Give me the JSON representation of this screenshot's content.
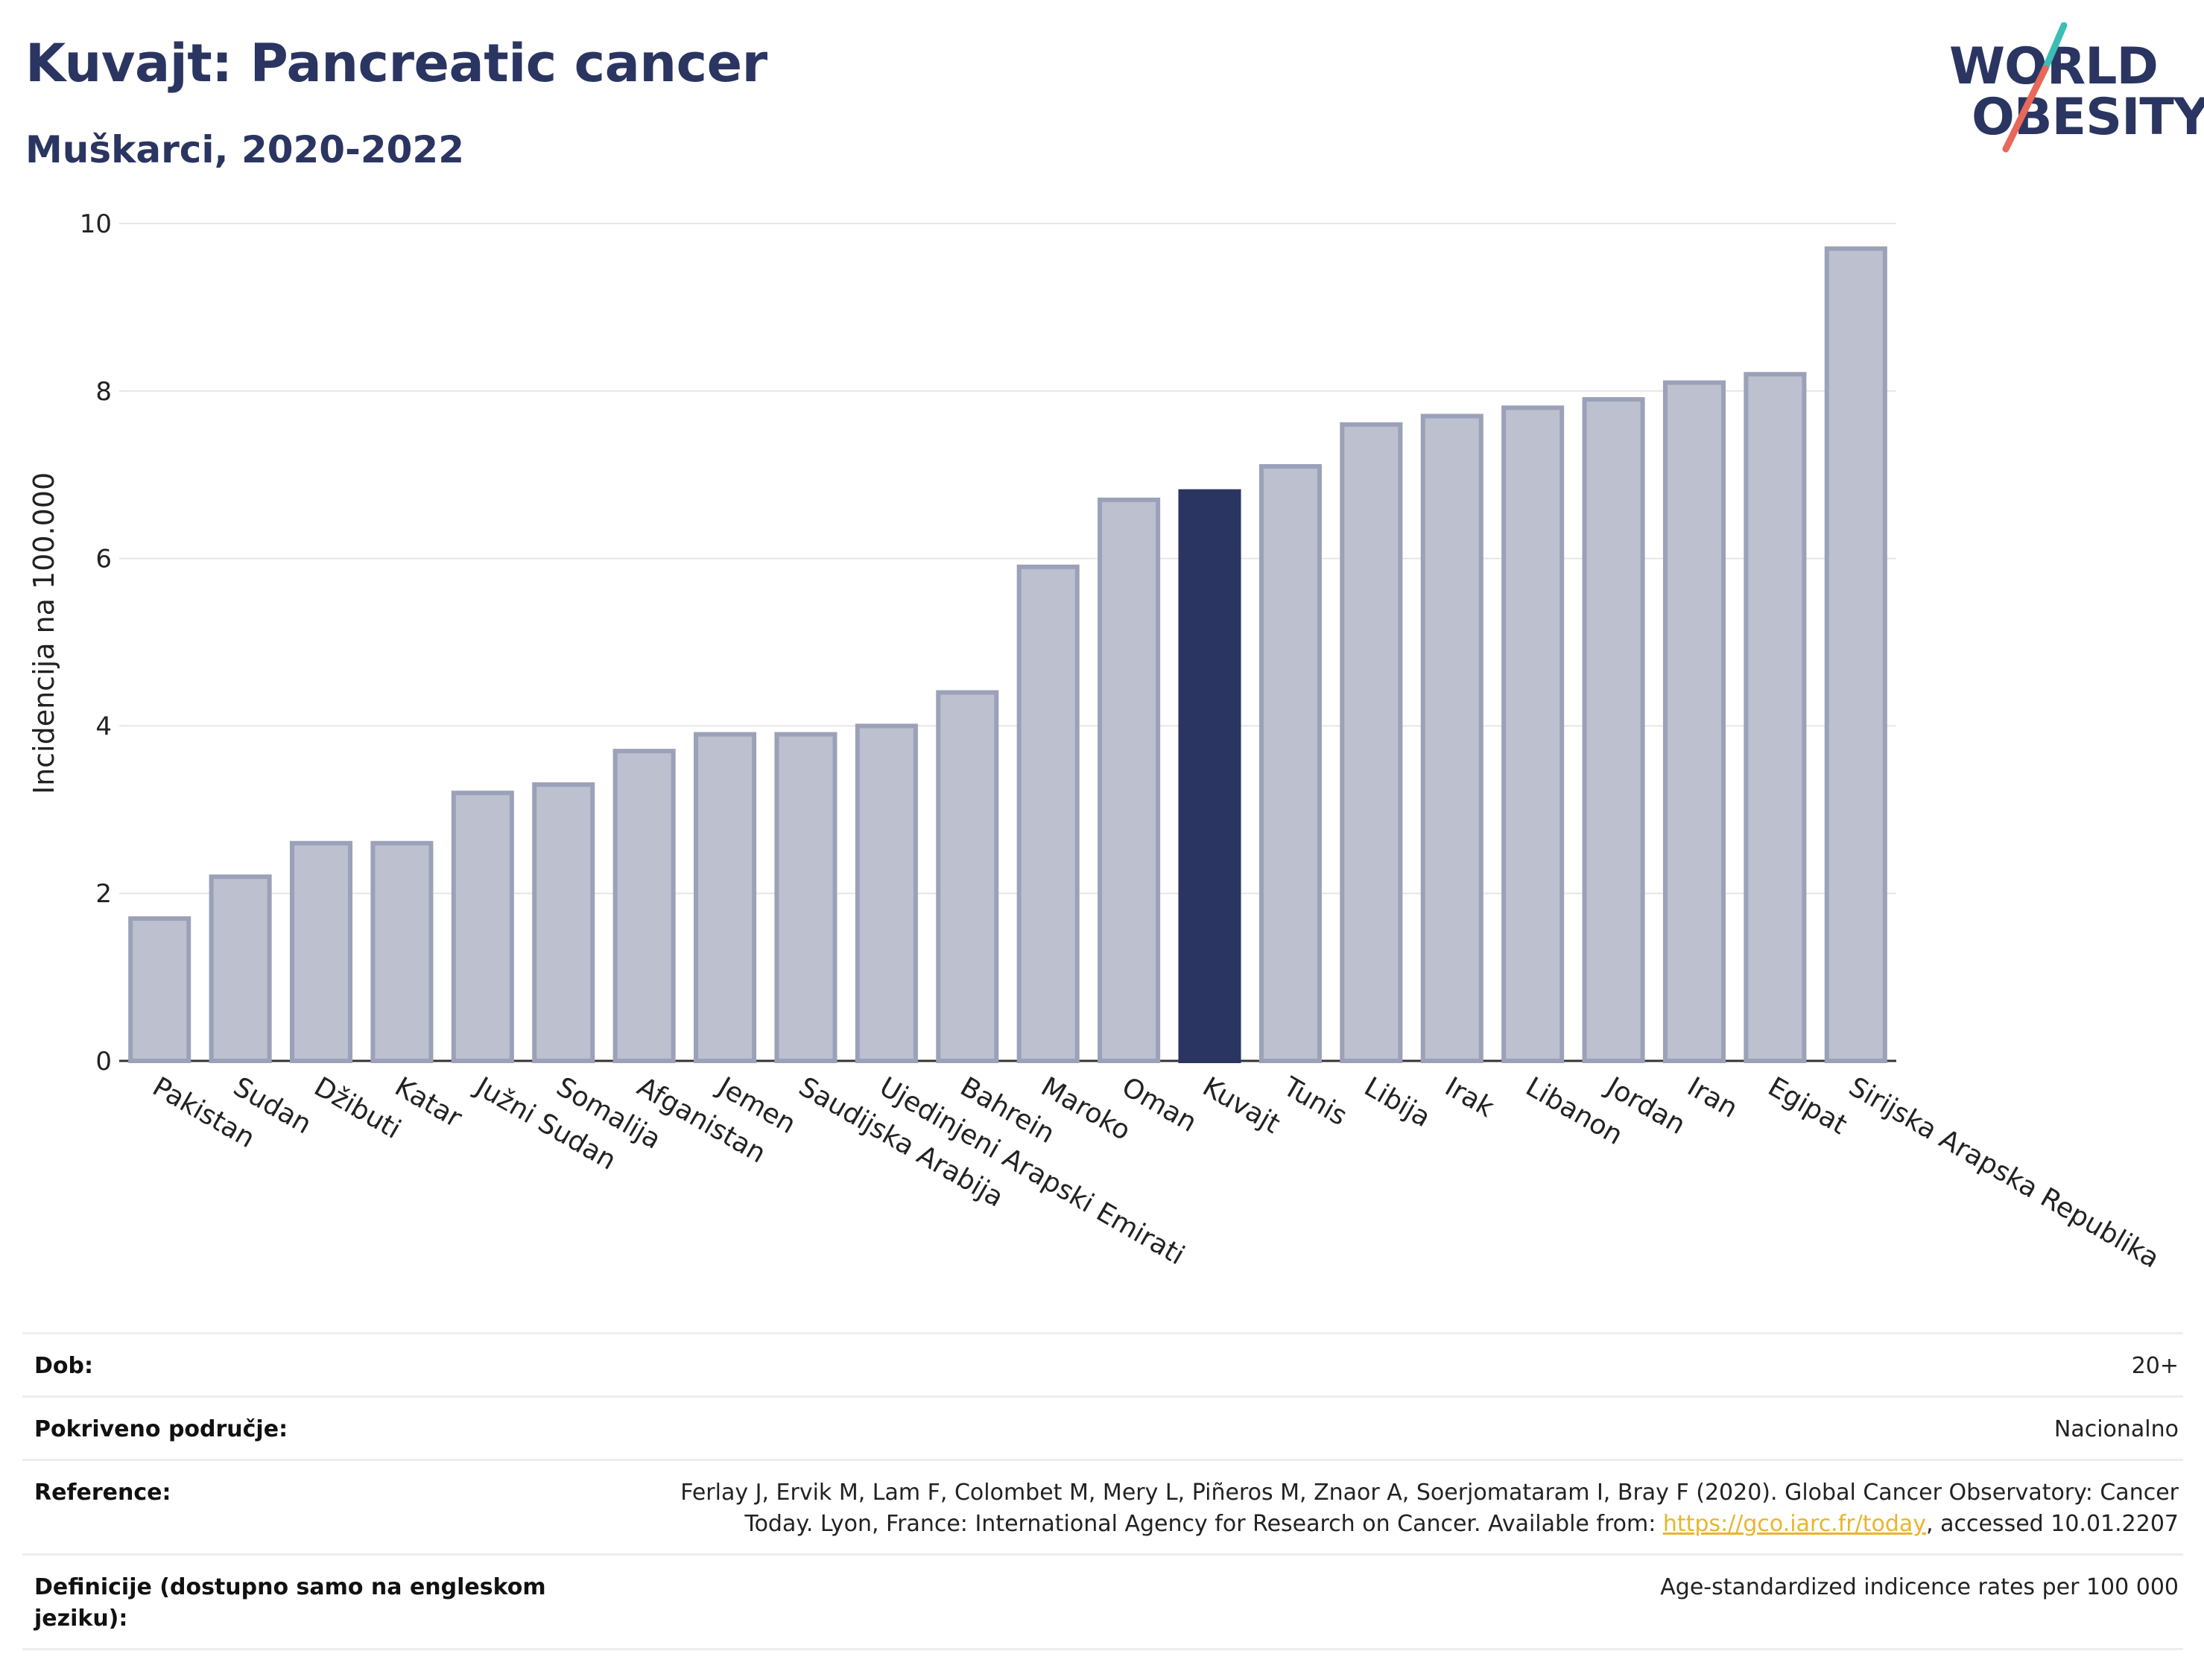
{
  "header": {
    "title": "Kuvajt: Pancreatic cancer",
    "subtitle": "Muškarci, 2020-2022"
  },
  "logo": {
    "line1": "WORLD",
    "line2": "OBESITY",
    "accent_teal": "#3bbfb5",
    "accent_red": "#e8685a"
  },
  "chart_data": {
    "type": "bar",
    "ylabel": "Incidencija na 100.000",
    "ylim": [
      0,
      10
    ],
    "yticks": [
      0,
      2,
      4,
      6,
      8,
      10
    ],
    "grid": true,
    "highlight": "Kuvajt",
    "colors": {
      "bar": "#bcc0cf",
      "bar_edge": "#9ba1b8",
      "highlight": "#2b3561"
    },
    "categories": [
      "Pakistan",
      "Sudan",
      "Džibuti",
      "Katar",
      "Južni Sudan",
      "Somalija",
      "Afganistan",
      "Jemen",
      "Saudijska Arabija",
      "Ujedinjeni Arapski Emirati",
      "Bahrein",
      "Maroko",
      "Oman",
      "Kuvajt",
      "Tunis",
      "Libija",
      "Irak",
      "Libanon",
      "Jordan",
      "Iran",
      "Egipat",
      "Sirijska Arapska Republika"
    ],
    "values": [
      1.7,
      2.2,
      2.6,
      2.6,
      3.2,
      3.3,
      3.7,
      3.9,
      3.9,
      4.0,
      4.4,
      5.9,
      6.7,
      6.8,
      7.1,
      7.6,
      7.7,
      7.8,
      7.9,
      8.1,
      8.2,
      9.7
    ]
  },
  "info": {
    "rows": [
      {
        "label": "Dob:",
        "value": "20+"
      },
      {
        "label": "Pokriveno područje:",
        "value": "Nacionalno"
      },
      {
        "label": "Reference:",
        "value_before": "Ferlay J, Ervik M, Lam F, Colombet M, Mery L, Piñeros M, Znaor A, Soerjomataram I, Bray F (2020). Global Cancer Observatory: Cancer Today. Lyon, France: International Agency for Research on Cancer. Available from: ",
        "link": "https://gco.iarc.fr/today",
        "value_after": ", accessed 10.01.2207"
      },
      {
        "label": "Definicije (dostupno samo na engleskom jeziku):",
        "value": "Age-standardized indicence rates per 100 000"
      }
    ]
  }
}
